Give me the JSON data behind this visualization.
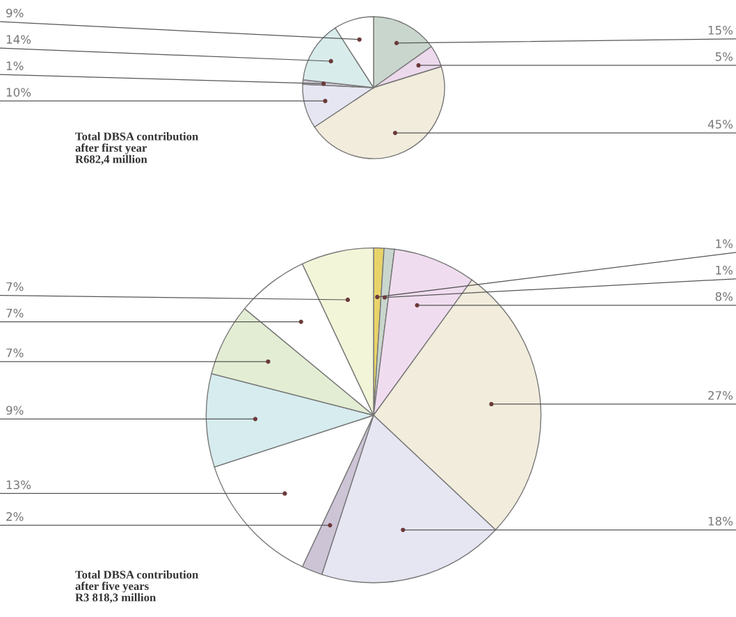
{
  "chart_data": [
    {
      "type": "pie",
      "title": "Total DBSA contribution\nafter first year\nR682,4 million",
      "categories": [
        null,
        null,
        null,
        null,
        null,
        null,
        null
      ],
      "values": [
        15,
        5,
        45,
        10,
        1,
        14,
        9
      ],
      "value_labels": [
        "15%",
        "5%",
        "45%",
        "10%",
        "1%",
        "14%",
        "9%"
      ],
      "colors": [
        "#c9d6cd",
        "#ecd9ec",
        "#f1ecdc",
        "#e6e6f3",
        "#cfc8d6",
        "#d9ecec",
        "#ffffff"
      ]
    },
    {
      "type": "pie",
      "title": "Total DBSA contribution\nafter five years\nR3 818,3 million",
      "categories": [
        null,
        null,
        null,
        null,
        null,
        null,
        null,
        null,
        null,
        null,
        null
      ],
      "values": [
        1,
        1,
        8,
        27,
        18,
        2,
        13,
        9,
        7,
        7,
        7
      ],
      "value_labels": [
        "1%",
        "1%",
        "8%",
        "27%",
        "18%",
        "2%",
        "13%",
        "9%",
        "7%",
        "7%",
        "7%"
      ],
      "colors": [
        "#e8d36a",
        "#c9d6cd",
        "#f0dcef",
        "#f1ecdc",
        "#e6e6f3",
        "#cdc4d6",
        "#ffffff",
        "#d6ecee",
        "#e3edd3",
        "#ffffff",
        "#f3f5d8"
      ]
    }
  ]
}
